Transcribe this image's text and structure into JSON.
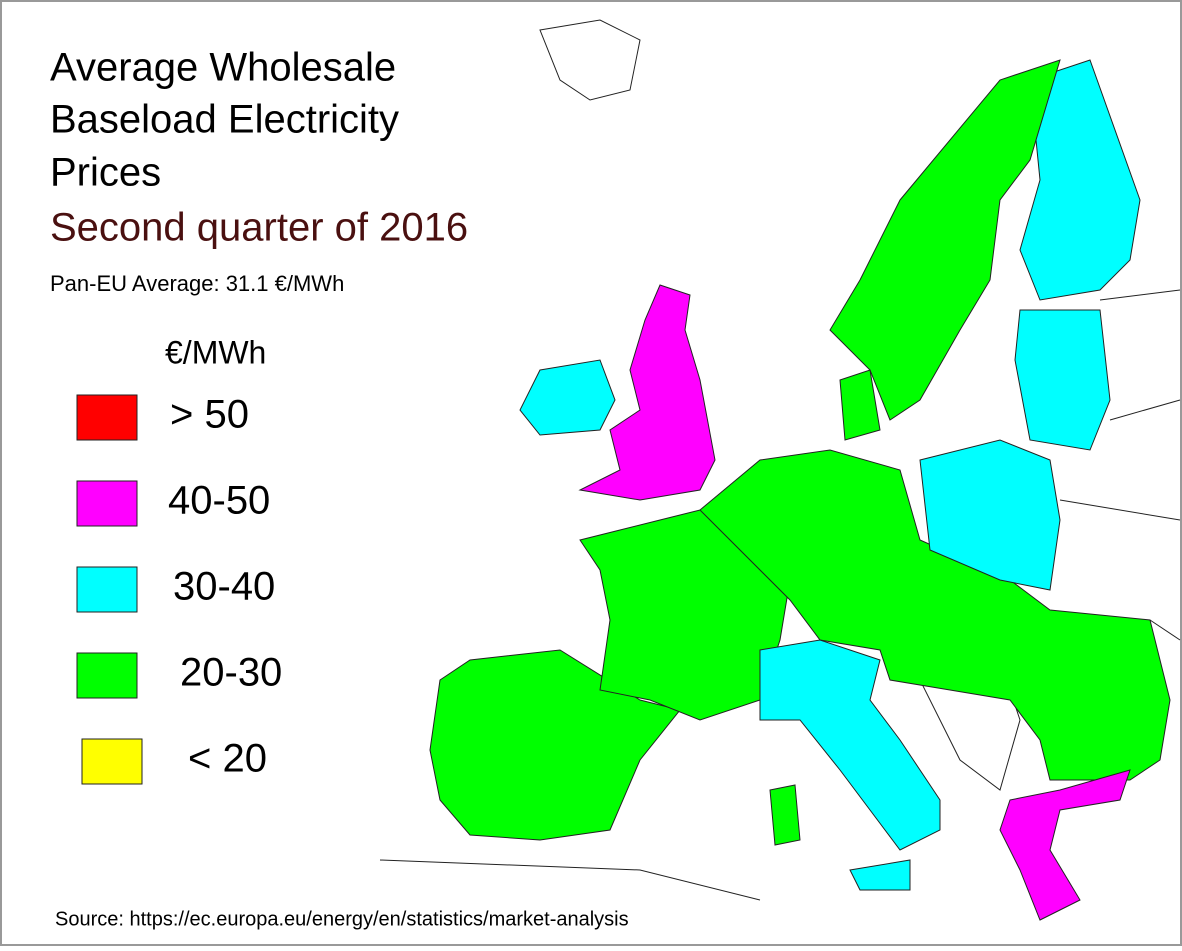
{
  "title": [
    "Average Wholesale",
    "Baseload Electricity",
    "Prices"
  ],
  "subtitle": "Second quarter of 2016",
  "average": "Pan-EU Average: 31.1 €/MWh",
  "legend": {
    "unit": "€/MWh",
    "items": [
      {
        "label": "> 50",
        "color": "#ff0000"
      },
      {
        "label": "40-50",
        "color": "#ff00ff"
      },
      {
        "label": "30-40",
        "color": "#00ffff"
      },
      {
        "label": "20-30",
        "color": "#00ff00"
      },
      {
        "label": "< 20",
        "color": "#ffff00"
      }
    ]
  },
  "source": "Source: https://ec.europa.eu/energy/en/statistics/market-analysis"
}
